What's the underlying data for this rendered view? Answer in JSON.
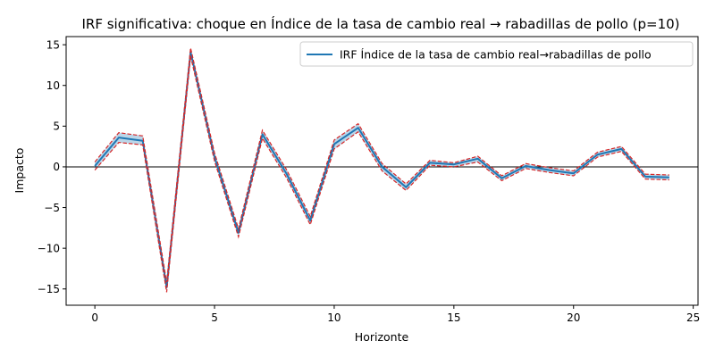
{
  "chart_data": {
    "type": "line",
    "title": "IRF significativa: choque en Índice de la tasa de cambio real → rabadillas de pollo (p=10)",
    "xlabel": "Horizonte",
    "ylabel": "Impacto",
    "xlim": [
      -1.2,
      25.2
    ],
    "ylim": [
      -17,
      16
    ],
    "xticks": [
      0,
      5,
      10,
      15,
      20,
      25
    ],
    "yticks": [
      -15,
      -10,
      -5,
      0,
      5,
      10,
      15
    ],
    "grid": false,
    "legend_position": "top-right",
    "x": [
      0,
      1,
      2,
      3,
      4,
      5,
      6,
      7,
      8,
      9,
      10,
      11,
      12,
      13,
      14,
      15,
      16,
      17,
      18,
      19,
      20,
      21,
      22,
      23,
      24
    ],
    "series": [
      {
        "name": "IRF Índice de la tasa de cambio real→rabadillas de pollo",
        "color": "#1f77b4",
        "values": [
          0.1,
          3.6,
          3.2,
          -14.8,
          14.1,
          1.2,
          -8.1,
          4.0,
          -0.8,
          -6.6,
          2.8,
          4.8,
          0.0,
          -2.5,
          0.5,
          0.3,
          1.0,
          -1.4,
          0.1,
          -0.4,
          -0.8,
          1.5,
          2.2,
          -1.2,
          -1.3
        ]
      }
    ],
    "band": {
      "color": "#1f77b4",
      "line_color": "#d62728",
      "lower": [
        -0.4,
        3.0,
        2.7,
        -15.4,
        13.6,
        0.7,
        -8.6,
        3.5,
        -1.3,
        -7.1,
        2.2,
        4.3,
        -0.5,
        -2.9,
        0.2,
        0.0,
        0.6,
        -1.7,
        -0.2,
        -0.7,
        -1.1,
        1.2,
        1.9,
        -1.5,
        -1.6
      ],
      "upper": [
        0.6,
        4.2,
        3.8,
        -14.2,
        14.6,
        1.7,
        -7.6,
        4.5,
        -0.3,
        -6.1,
        3.3,
        5.3,
        0.4,
        -2.1,
        0.8,
        0.5,
        1.3,
        -1.1,
        0.4,
        -0.1,
        -0.5,
        1.8,
        2.5,
        -0.9,
        -1.0
      ]
    },
    "hline": 0
  }
}
